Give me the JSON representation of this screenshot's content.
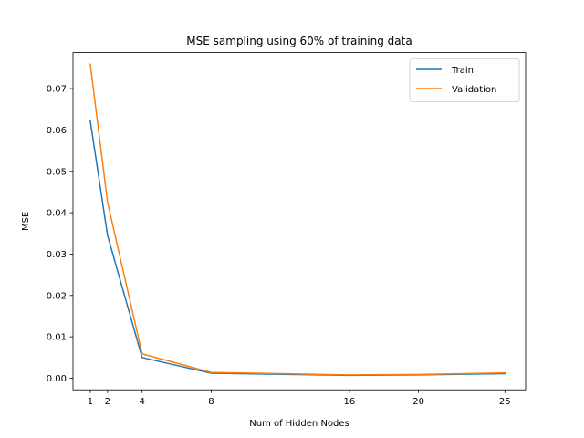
{
  "chart_data": {
    "type": "line",
    "title": "MSE sampling using 60% of training data",
    "xlabel": "Num of Hidden Nodes",
    "ylabel": "MSE",
    "x": [
      1,
      2,
      4,
      8,
      16,
      20,
      25
    ],
    "x_ticks": [
      "1",
      "2",
      "4",
      "8",
      "16",
      "20",
      "25"
    ],
    "y_ticks": [
      "0.00",
      "0.01",
      "0.02",
      "0.03",
      "0.04",
      "0.05",
      "0.06",
      "0.07"
    ],
    "xlim": [
      0.0,
      26.2
    ],
    "ylim": [
      -0.0028,
      0.0787
    ],
    "grid": false,
    "legend_position": "top-right",
    "series": [
      {
        "name": "Train",
        "color": "#1f77b4",
        "values": [
          0.0622,
          0.0345,
          0.005,
          0.0012,
          0.0007,
          0.0008,
          0.0011
        ]
      },
      {
        "name": "Validation",
        "color": "#ff7f0e",
        "values": [
          0.0759,
          0.0425,
          0.0059,
          0.0014,
          0.0008,
          0.0009,
          0.0013
        ]
      }
    ]
  }
}
